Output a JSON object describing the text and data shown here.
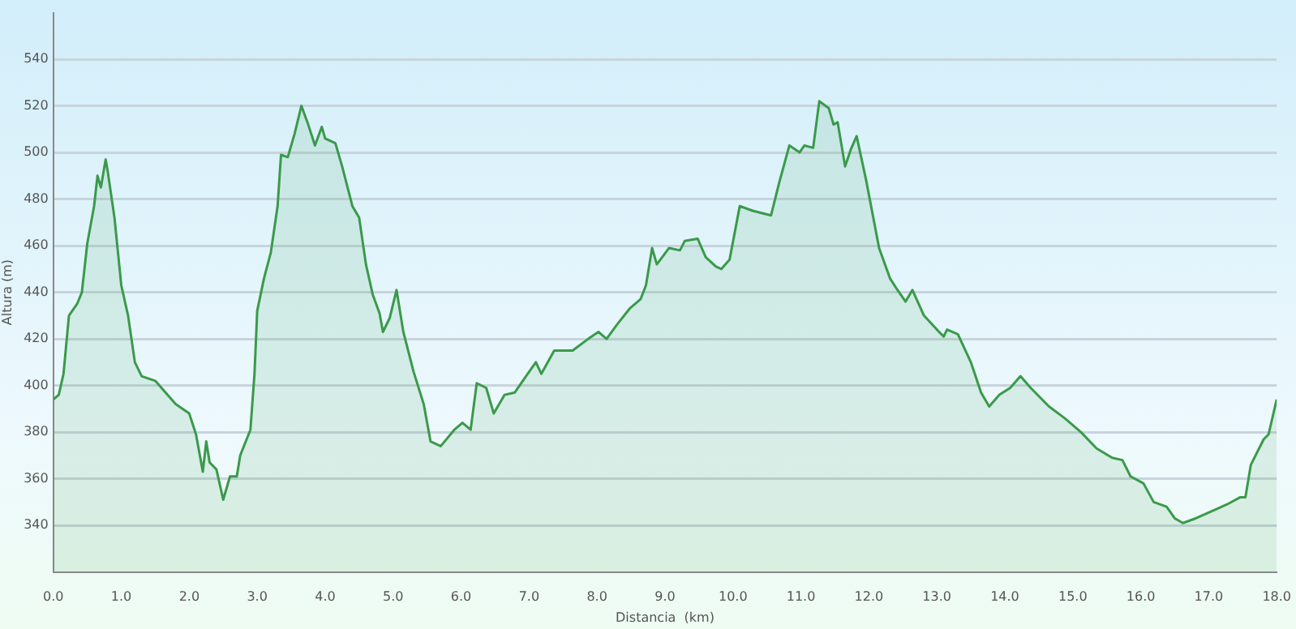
{
  "chart_data": {
    "type": "area",
    "xlabel": "Distancia  (km)",
    "ylabel": "Altura (m)",
    "xlim": [
      0,
      18
    ],
    "ylim": [
      320,
      560
    ],
    "xticks": [
      {
        "value": 0,
        "label": "0.0"
      },
      {
        "value": 1,
        "label": "1.0"
      },
      {
        "value": 2,
        "label": "2.0"
      },
      {
        "value": 3,
        "label": "3.0"
      },
      {
        "value": 4,
        "label": "4.0"
      },
      {
        "value": 5,
        "label": "5.0"
      },
      {
        "value": 6,
        "label": "6.0"
      },
      {
        "value": 7,
        "label": "7.0"
      },
      {
        "value": 8,
        "label": "8.0"
      },
      {
        "value": 9,
        "label": "9.0"
      },
      {
        "value": 10,
        "label": "10.0"
      },
      {
        "value": 11,
        "label": "11.0"
      },
      {
        "value": 12,
        "label": "12.0"
      },
      {
        "value": 13,
        "label": "13.0"
      },
      {
        "value": 14,
        "label": "14.0"
      },
      {
        "value": 15,
        "label": "15.0"
      },
      {
        "value": 16,
        "label": "16.0"
      },
      {
        "value": 17,
        "label": "17.0"
      },
      {
        "value": 18,
        "label": "18.0"
      }
    ],
    "yticks": [
      340,
      360,
      380,
      400,
      420,
      440,
      460,
      480,
      500,
      520,
      540
    ],
    "grid": "y",
    "legend": false,
    "marker": "none",
    "line_style": "solid",
    "series": [
      {
        "color": "#3a9a4a",
        "x": [
          0,
          0.08,
          0.15,
          0.23,
          0.35,
          0.42,
          0.5,
          0.6,
          0.65,
          0.7,
          0.77,
          0.8,
          0.9,
          1.0,
          1.1,
          1.2,
          1.3,
          1.5,
          1.8,
          2.0,
          2.1,
          2.2,
          2.25,
          2.3,
          2.4,
          2.5,
          2.6,
          2.7,
          2.75,
          2.9,
          2.96,
          3.0,
          3.1,
          3.2,
          3.3,
          3.35,
          3.45,
          3.55,
          3.65,
          3.75,
          3.85,
          3.95,
          4.0,
          4.15,
          4.25,
          4.4,
          4.5,
          4.6,
          4.7,
          4.8,
          4.85,
          4.95,
          5.05,
          5.15,
          5.3,
          5.45,
          5.55,
          5.7,
          5.9,
          6.02,
          6.14,
          6.23,
          6.37,
          6.48,
          6.64,
          6.79,
          6.98,
          7.1,
          7.18,
          7.37,
          7.64,
          7.87,
          8.02,
          8.14,
          8.29,
          8.48,
          8.64,
          8.72,
          8.81,
          8.88,
          9.06,
          9.22,
          9.29,
          9.48,
          9.6,
          9.75,
          9.83,
          9.95,
          10.1,
          10.29,
          10.56,
          10.68,
          10.83,
          10.98,
          11.05,
          11.18,
          11.27,
          11.41,
          11.48,
          11.54,
          11.65,
          11.73,
          11.82,
          11.96,
          12.15,
          12.31,
          12.42,
          12.54,
          12.64,
          12.81,
          13.0,
          13.1,
          13.15,
          13.31,
          13.5,
          13.65,
          13.77,
          13.92,
          14.08,
          14.23,
          14.38,
          14.65,
          14.88,
          15.12,
          15.35,
          15.58,
          15.73,
          15.85,
          16.04,
          16.19,
          16.38,
          16.5,
          16.62,
          16.81,
          17.12,
          17.27,
          17.46,
          17.54,
          17.62,
          17.81,
          17.88,
          18.0
        ],
        "values": [
          394,
          396,
          405,
          430,
          435,
          440,
          461,
          477,
          490,
          485,
          497,
          492,
          472,
          443,
          430,
          410,
          404,
          402,
          392,
          388,
          379,
          363,
          376,
          367,
          364,
          351,
          361,
          361,
          370,
          381,
          405,
          432,
          446,
          457,
          477,
          499,
          498,
          508,
          520,
          512,
          503,
          511,
          506,
          504,
          494,
          477,
          472,
          452,
          439,
          431,
          423,
          429,
          441,
          423,
          406,
          392,
          376,
          374,
          381,
          384,
          381,
          401,
          399,
          388,
          396,
          397,
          405,
          410,
          405,
          415,
          415,
          420,
          423,
          420,
          426,
          433,
          437,
          443,
          459,
          452,
          459,
          458,
          462,
          463,
          455,
          451,
          450,
          454,
          477,
          475,
          473,
          487,
          503,
          500,
          503,
          502,
          522,
          519,
          512,
          513,
          494,
          501,
          507,
          488,
          459,
          446,
          441,
          436,
          441,
          430,
          424,
          421,
          424,
          422,
          410,
          397,
          391,
          396,
          399,
          404,
          399,
          391,
          386,
          380,
          373,
          369,
          368,
          361,
          358,
          350,
          348,
          343,
          341,
          343,
          347,
          349,
          352,
          352,
          366,
          377,
          379,
          394
        ]
      }
    ]
  }
}
